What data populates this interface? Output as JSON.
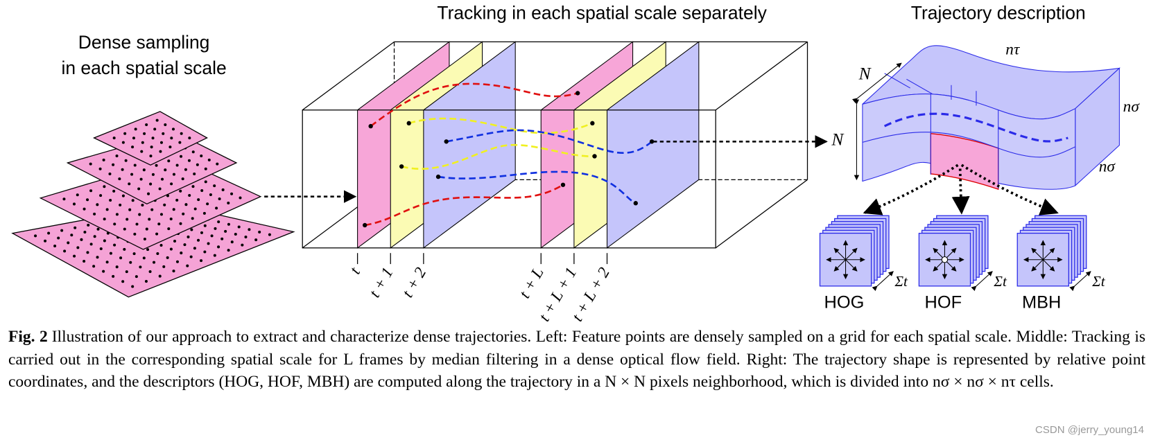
{
  "figure": {
    "left_title": [
      "Dense sampling",
      "in each spatial scale"
    ],
    "middle_title": "Tracking in each spatial scale separately",
    "right_title": "Trajectory description",
    "frame_labels": [
      "t",
      "t + 1",
      "t + 2",
      "t + L",
      "t + L + 1",
      "t + L + 2"
    ],
    "cube_labels": {
      "n_tau": "nτ",
      "n_top": "N",
      "n_side": "N",
      "n_sigma_1": "nσ",
      "n_sigma_2": "nσ"
    },
    "descriptors": [
      {
        "name": "HOG",
        "sum": "Σt"
      },
      {
        "name": "HOF",
        "sum": "Σt"
      },
      {
        "name": "MBH",
        "sum": "Σt"
      }
    ]
  },
  "caption": {
    "label": "Fig. 2",
    "text": "Illustration of our approach to extract and characterize dense trajectories. Left: Feature points are densely sampled on a grid for each spatial scale. Middle: Tracking is carried out in the corresponding spatial scale for L frames by median filtering in a dense optical flow field. Right: The trajectory shape is represented by relative point coordinates, and the descriptors (HOG, HOF, MBH) are computed along the trajectory in a N × N pixels neighborhood, which is divided into nσ × nσ × nτ cells."
  },
  "watermark": "CSDN @jerry_young14"
}
